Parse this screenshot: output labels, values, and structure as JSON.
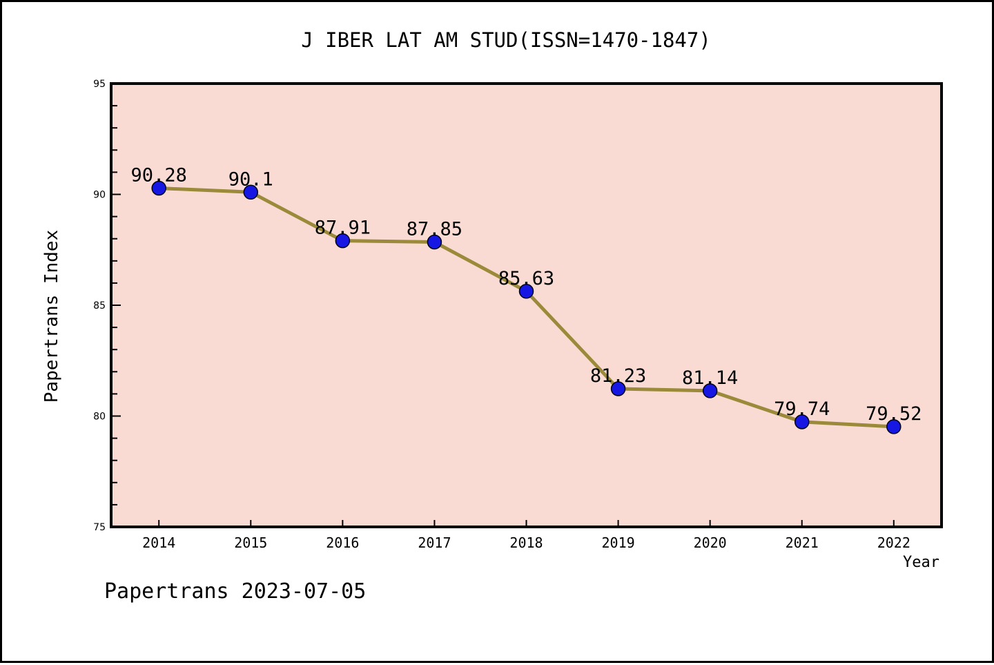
{
  "title": "J IBER LAT AM STUD(ISSN=1470-1847)",
  "footer": "Papertrans 2023-07-05",
  "chart_data": {
    "type": "line",
    "title": "J IBER LAT AM STUD(ISSN=1470-1847)",
    "xlabel": "Year",
    "ylabel": "Papertrans Index",
    "x": [
      2014,
      2015,
      2016,
      2017,
      2018,
      2019,
      2020,
      2021,
      2022
    ],
    "series": [
      {
        "name": "Papertrans Index",
        "values": [
          90.28,
          90.1,
          87.91,
          87.85,
          85.63,
          81.23,
          81.14,
          79.74,
          79.52
        ]
      }
    ],
    "point_labels": [
      "90.28",
      "90.1",
      "87.91",
      "87.85",
      "85.63",
      "81.23",
      "81.14",
      "79.74",
      "79.52"
    ],
    "xlim": [
      2013.48,
      2022.52
    ],
    "ylim": [
      75,
      95
    ],
    "yticks": [
      75,
      80,
      85,
      90,
      95
    ],
    "ytick_minor_step": 1,
    "grid": false,
    "legend": "none",
    "tick_direction": "in",
    "colors": {
      "plot_bg": "#fadbd4",
      "frame": "#000000",
      "line": "#9a8a3a",
      "marker": "#1717e3",
      "marker_edge": "#000016",
      "text": "#000000",
      "page_bg": "#ffffff"
    }
  }
}
